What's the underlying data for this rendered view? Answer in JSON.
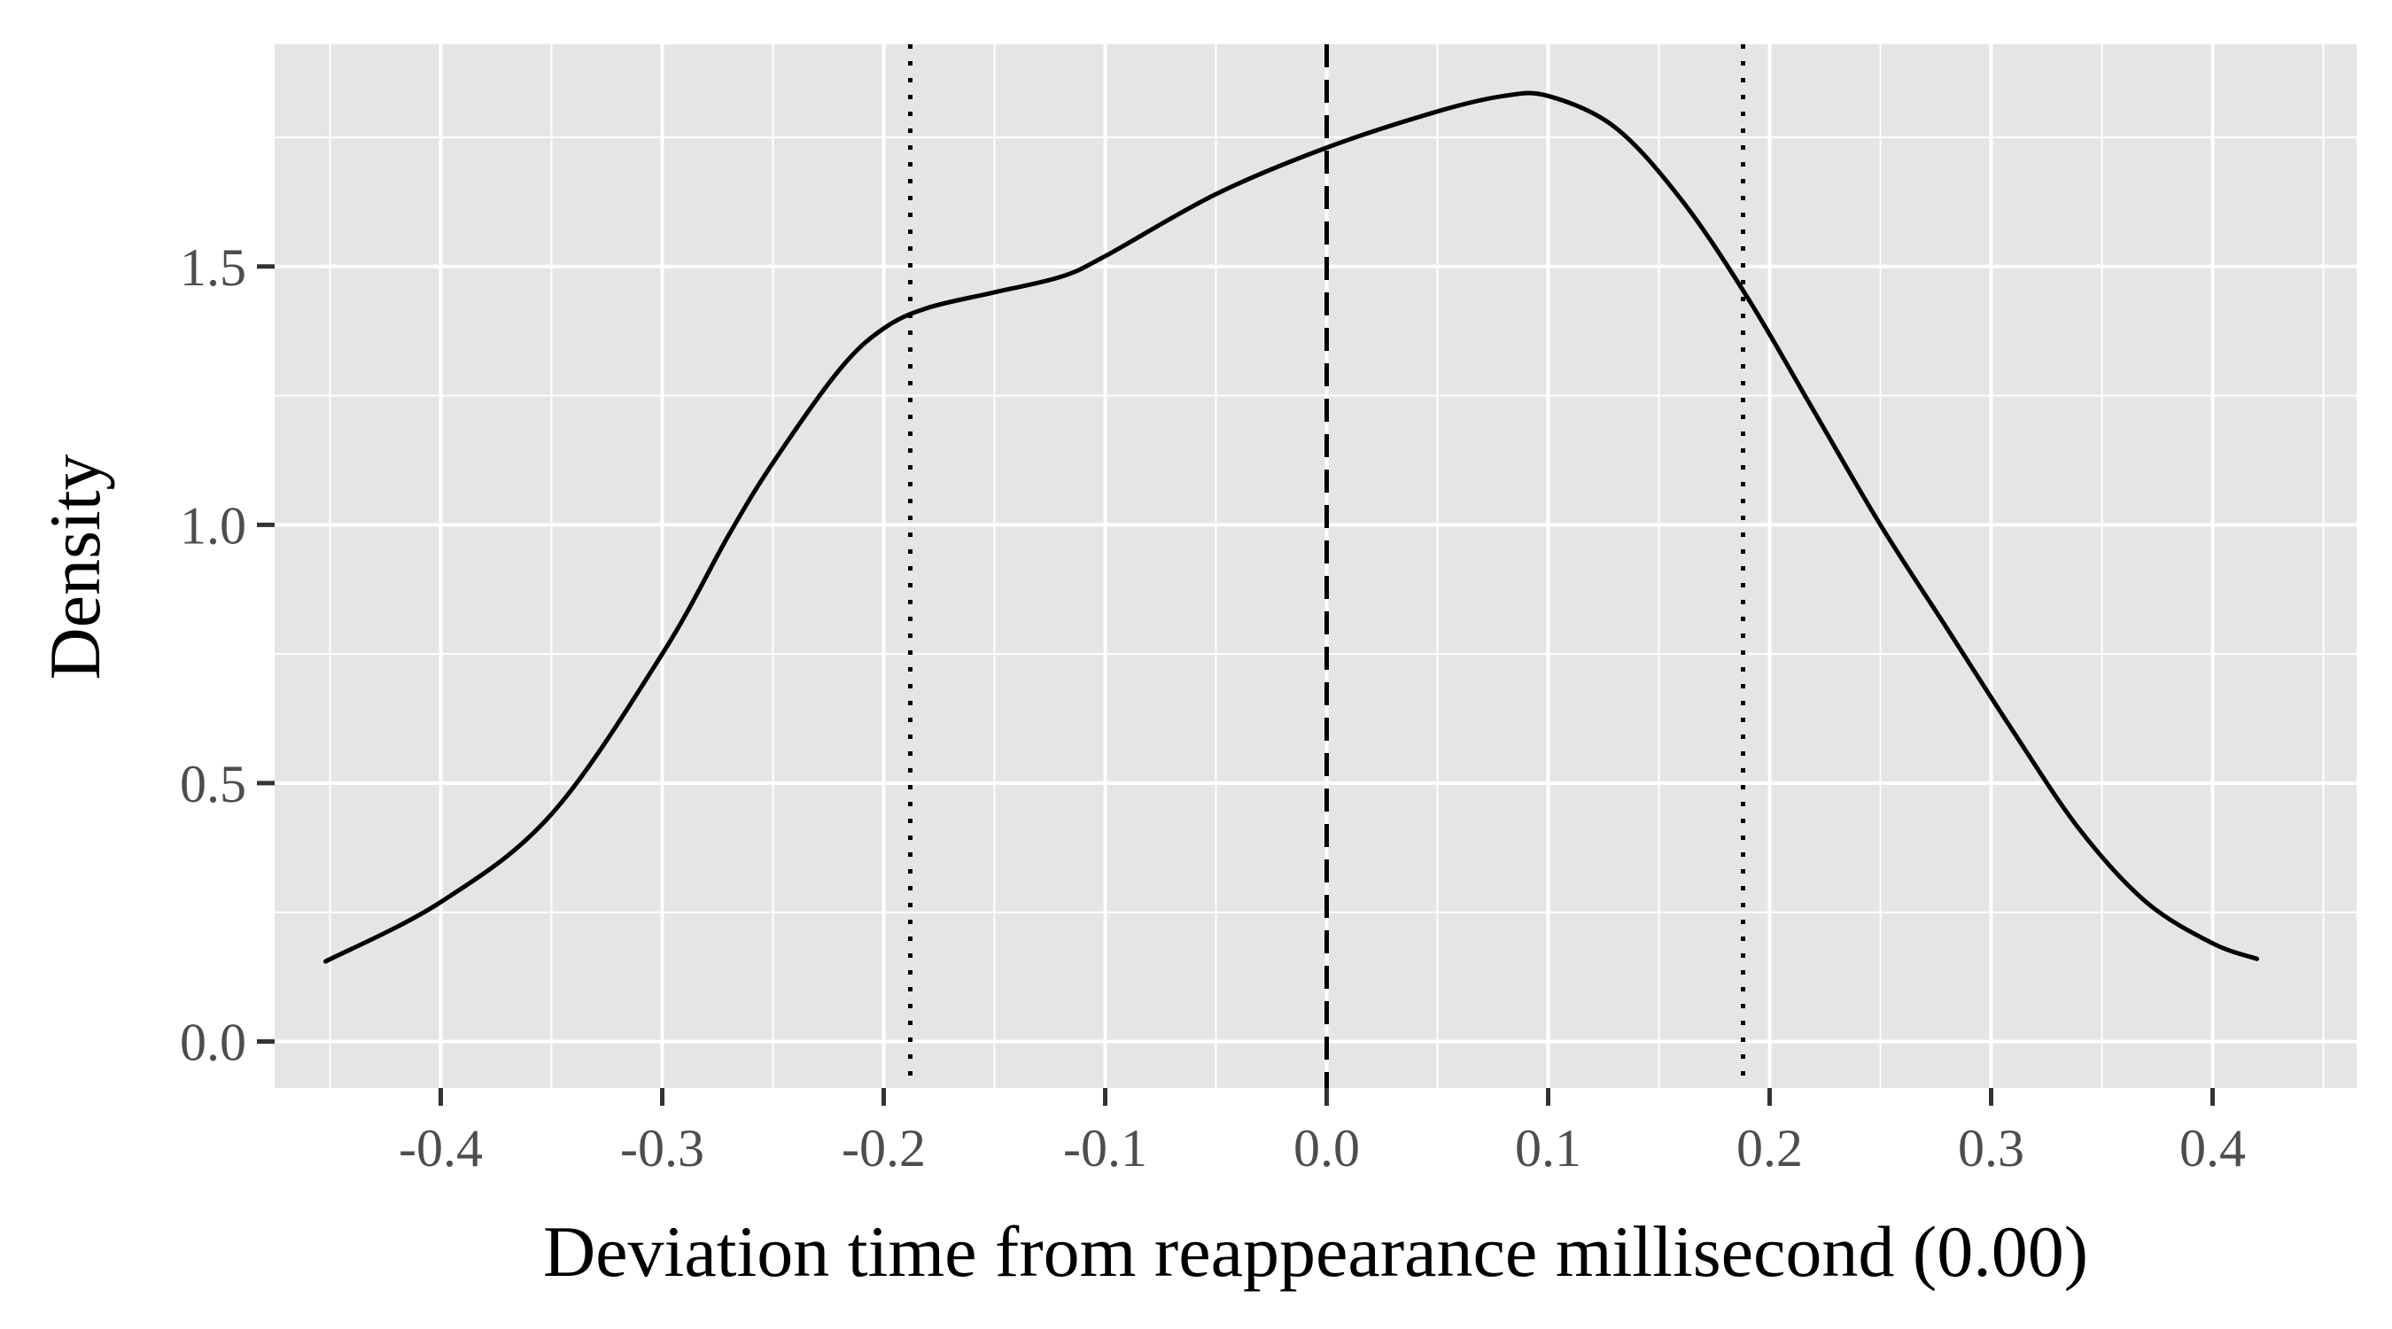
{
  "chart_data": {
    "type": "line",
    "title": "",
    "xlabel": "Deviation time from reappearance millisecond (0.00)",
    "ylabel": "Density",
    "xlim": [
      -0.475,
      0.465
    ],
    "ylim": [
      -0.09,
      1.93
    ],
    "x_ticks": [
      -0.4,
      -0.3,
      -0.2,
      -0.1,
      0.0,
      0.1,
      0.2,
      0.3,
      0.4
    ],
    "x_tick_labels": [
      "-0.4",
      "-0.3",
      "-0.2",
      "-0.1",
      "0.0",
      "0.1",
      "0.2",
      "0.3",
      "0.4"
    ],
    "y_ticks": [
      0.0,
      0.5,
      1.0,
      1.5
    ],
    "y_tick_labels": [
      "0.0",
      "0.5",
      "1.0",
      "1.5"
    ],
    "grid": true,
    "panel_background": "#e5e5e5",
    "grid_color": "#ffffff",
    "series": [
      {
        "color": "#000000",
        "x": [
          -0.452,
          -0.4,
          -0.35,
          -0.3,
          -0.27,
          -0.25,
          -0.22,
          -0.2,
          -0.18,
          -0.15,
          -0.12,
          -0.1,
          -0.05,
          0.0,
          0.05,
          0.08,
          0.1,
          0.13,
          0.16,
          0.19,
          0.22,
          0.25,
          0.28,
          0.31,
          0.34,
          0.37,
          0.4,
          0.42
        ],
        "y": [
          0.155,
          0.27,
          0.44,
          0.75,
          0.98,
          1.12,
          1.3,
          1.38,
          1.42,
          1.45,
          1.48,
          1.52,
          1.64,
          1.73,
          1.8,
          1.83,
          1.83,
          1.77,
          1.63,
          1.44,
          1.22,
          1.0,
          0.8,
          0.6,
          0.41,
          0.27,
          0.19,
          0.16
        ]
      }
    ],
    "reference_lines": [
      {
        "x": 0.0,
        "style": "dashed"
      },
      {
        "x": -0.188,
        "style": "dotted"
      },
      {
        "x": 0.188,
        "style": "dotted"
      }
    ]
  }
}
